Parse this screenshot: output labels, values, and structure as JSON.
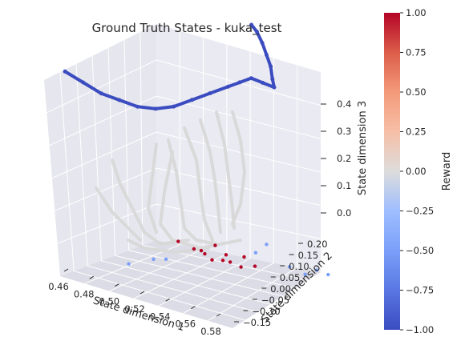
{
  "chart_data": {
    "type": "scatter",
    "title": "Ground Truth States - kuka_test",
    "xlabel": "State dimension 1",
    "ylabel": "State dimension 2",
    "zlabel": "State dimension 3",
    "x_ticks": [
      "0.46",
      "0.48",
      "0.50",
      "0.52",
      "0.54",
      "0.56",
      "0.58"
    ],
    "y_ticks": [
      "−0.15",
      "−0.10",
      "−0.05",
      "0.00",
      "0.05",
      "0.10",
      "0.15",
      "0.20"
    ],
    "z_ticks": [
      "0.0",
      "0.1",
      "0.2",
      "0.3",
      "0.4"
    ],
    "colorbar": {
      "label": "Reward",
      "ticks": [
        "1.00",
        "0.75",
        "0.50",
        "0.25",
        "0.00",
        "−0.25",
        "−0.50",
        "−0.75",
        "−1.00"
      ],
      "colormap": "coolwarm",
      "range": [
        -1,
        1
      ]
    },
    "series": [
      {
        "reward": -1,
        "color": "#3b4cc0",
        "points": [
          [
            0.455,
            0.2,
            0.42
          ],
          [
            0.465,
            0.18,
            0.4
          ],
          [
            0.475,
            0.16,
            0.38
          ],
          [
            0.485,
            0.14,
            0.37
          ],
          [
            0.495,
            0.12,
            0.36
          ],
          [
            0.505,
            0.1,
            0.36
          ],
          [
            0.515,
            0.08,
            0.37
          ],
          [
            0.525,
            0.06,
            0.39
          ],
          [
            0.535,
            0.04,
            0.41
          ],
          [
            0.545,
            0.02,
            0.43
          ],
          [
            0.55,
            0.0,
            0.44
          ],
          [
            0.555,
            -0.02,
            0.45
          ],
          [
            0.56,
            -0.04,
            0.44
          ],
          [
            0.565,
            -0.06,
            0.43
          ],
          [
            0.56,
            -0.08,
            0.44
          ],
          [
            0.555,
            -0.1,
            0.46
          ],
          [
            0.55,
            -0.11,
            0.48
          ],
          [
            0.545,
            -0.12,
            0.5
          ],
          [
            0.54,
            -0.125,
            0.52
          ],
          [
            0.535,
            -0.13,
            0.53
          ]
        ]
      },
      {
        "reward": 1,
        "color": "#b40426",
        "points": [
          [
            0.5,
            -0.02,
            0.03
          ],
          [
            0.51,
            -0.03,
            0.02
          ],
          [
            0.52,
            -0.02,
            0.02
          ],
          [
            0.53,
            -0.04,
            0.01
          ],
          [
            0.52,
            -0.05,
            0.0
          ],
          [
            0.51,
            -0.06,
            0.01
          ],
          [
            0.53,
            -0.07,
            0.0
          ],
          [
            0.54,
            -0.06,
            0.0
          ],
          [
            0.525,
            -0.08,
            0.01
          ],
          [
            0.515,
            -0.09,
            0.02
          ],
          [
            0.535,
            -0.1,
            0.01
          ],
          [
            0.545,
            -0.09,
            0.0
          ]
        ]
      },
      {
        "reward": -0.5,
        "color": "#7b9ff9",
        "points": [
          [
            0.47,
            0.02,
            -0.04
          ],
          [
            0.485,
            0.0,
            -0.02
          ],
          [
            0.5,
            0.03,
            0.0
          ],
          [
            0.54,
            -0.12,
            0.02
          ],
          [
            0.56,
            -0.15,
            0.0
          ],
          [
            0.57,
            -0.16,
            -0.01
          ],
          [
            0.575,
            -0.18,
            0.0
          ],
          [
            0.58,
            -0.2,
            -0.01
          ],
          [
            0.55,
            -0.11,
            0.05
          ]
        ]
      }
    ],
    "grey_trajectories_reward": 0
  }
}
